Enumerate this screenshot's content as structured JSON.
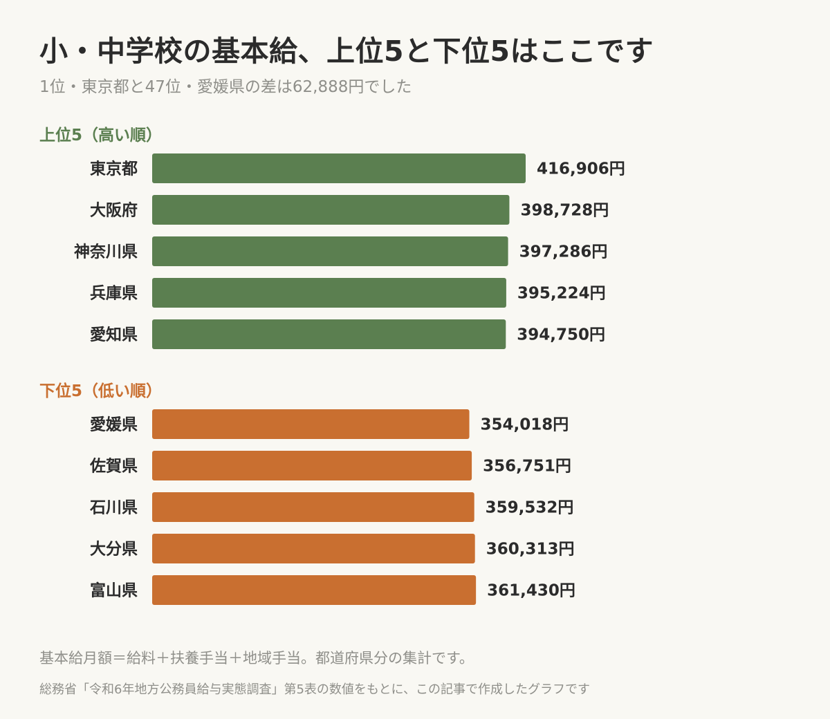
{
  "header": {
    "title": "小・中学校の基本給、上位5と下位5はここです",
    "subtitle": "1位・東京都と47位・愛媛県の差は62,888円でした"
  },
  "colors": {
    "top_bar": "#5b7f50",
    "bottom_bar": "#c96f30"
  },
  "chart_data": {
    "type": "bar",
    "orientation": "horizontal",
    "unit": "円",
    "groups": [
      {
        "label": "上位5（高い順）",
        "color": "#5b7f50",
        "categories": [
          "東京都",
          "大阪府",
          "神奈川県",
          "兵庫県",
          "愛知県"
        ],
        "values": [
          416906,
          398728,
          397286,
          395224,
          394750
        ],
        "value_labels": [
          "416,906円",
          "398,728円",
          "397,286円",
          "395,224円",
          "394,750円"
        ]
      },
      {
        "label": "下位5（低い順）",
        "color": "#c96f30",
        "categories": [
          "愛媛県",
          "佐賀県",
          "石川県",
          "大分県",
          "富山県"
        ],
        "values": [
          354018,
          356751,
          359532,
          360313,
          361430
        ],
        "value_labels": [
          "354,018円",
          "356,751円",
          "359,532円",
          "360,313円",
          "361,430円"
        ]
      }
    ]
  },
  "footer": {
    "note": "基本給月額＝給料＋扶養手当＋地域手当。都道府県分の集計です。",
    "source": "総務省「令和6年地方公務員給与実態調査」第5表の数値をもとに、この記事で作成したグラフです"
  }
}
